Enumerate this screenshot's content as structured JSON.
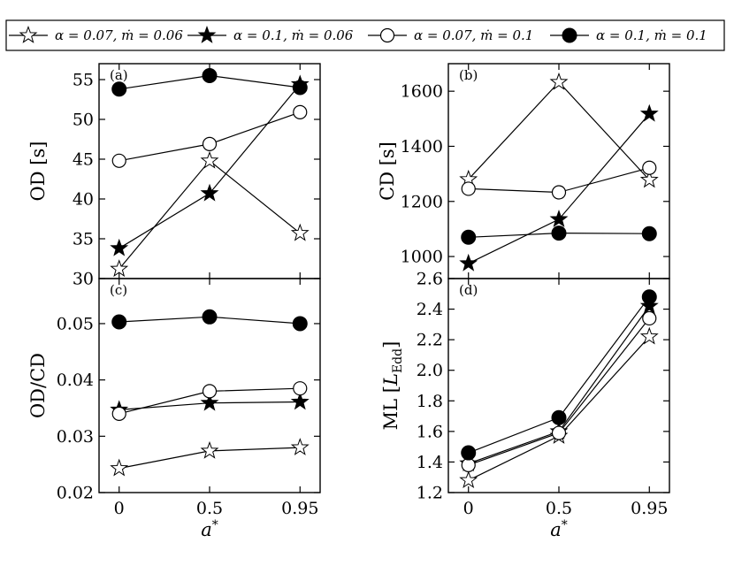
{
  "chart_data": {
    "type": "line",
    "legend": {
      "placement": "top",
      "entries": [
        {
          "label": "α = 0.07, ṁ = 0.06",
          "marker": "open-star"
        },
        {
          "label": "α = 0.1, ṁ = 0.06",
          "marker": "filled-star"
        },
        {
          "label": "α = 0.07, ṁ = 0.1",
          "marker": "open-circle"
        },
        {
          "label": "α = 0.1, ṁ = 0.1",
          "marker": "filled-circle"
        }
      ]
    },
    "x_categories": [
      "0",
      "0.5",
      "0.95"
    ],
    "xlabel": "a*",
    "panels": [
      {
        "id": "a",
        "label": "(a)",
        "ylabel": "OD [s]",
        "ylim": [
          30,
          57
        ],
        "yticks": [
          "30",
          "35",
          "40",
          "45",
          "50",
          "55"
        ],
        "series": [
          {
            "marker": "open-star",
            "values": [
              31.2,
              44.8,
              35.7
            ]
          },
          {
            "marker": "filled-star",
            "values": [
              33.8,
              40.7,
              54.4
            ]
          },
          {
            "marker": "open-circle",
            "values": [
              44.8,
              46.9,
              50.9
            ]
          },
          {
            "marker": "filled-circle",
            "values": [
              53.8,
              55.5,
              54.0
            ]
          }
        ]
      },
      {
        "id": "b",
        "label": "(b)",
        "ylabel": "CD [s]",
        "ylim": [
          920,
          1700
        ],
        "yticks": [
          "1000",
          "1200",
          "1400",
          "1600"
        ],
        "series": [
          {
            "marker": "open-star",
            "values": [
              1280,
              1633,
              1278
            ]
          },
          {
            "marker": "filled-star",
            "values": [
              975,
              1135,
              1518
            ]
          },
          {
            "marker": "open-circle",
            "values": [
              1246,
              1233,
              1322
            ]
          },
          {
            "marker": "filled-circle",
            "values": [
              1070,
              1085,
              1083
            ]
          }
        ]
      },
      {
        "id": "c",
        "label": "(c)",
        "ylabel": "OD/CD",
        "ylim": [
          0.02,
          0.058
        ],
        "yticks": [
          "0.02",
          "0.03",
          "0.04",
          "0.05"
        ],
        "series": [
          {
            "marker": "open-star",
            "values": [
              0.0243,
              0.0274,
              0.028
            ]
          },
          {
            "marker": "filled-star",
            "values": [
              0.0347,
              0.0359,
              0.0361
            ]
          },
          {
            "marker": "open-circle",
            "values": [
              0.034,
              0.038,
              0.0385
            ]
          },
          {
            "marker": "filled-circle",
            "values": [
              0.0503,
              0.0512,
              0.05
            ]
          }
        ]
      },
      {
        "id": "d",
        "label": "(d)",
        "ylabel": "ML [L_Edd]",
        "ylim": [
          1.2,
          2.6
        ],
        "yticks": [
          "1.2",
          "1.4",
          "1.6",
          "1.8",
          "2.0",
          "2.2",
          "2.4",
          "2.6"
        ],
        "series": [
          {
            "marker": "open-star",
            "values": [
              1.28,
              1.57,
              2.22
            ]
          },
          {
            "marker": "filled-star",
            "values": [
              1.39,
              1.6,
              2.42
            ]
          },
          {
            "marker": "open-circle",
            "values": [
              1.38,
              1.59,
              2.34
            ]
          },
          {
            "marker": "filled-circle",
            "values": [
              1.46,
              1.69,
              2.48
            ]
          }
        ]
      }
    ],
    "grid": false
  }
}
